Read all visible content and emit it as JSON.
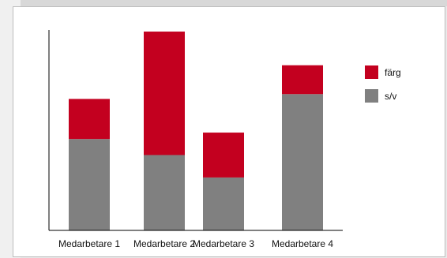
{
  "chart_data": {
    "type": "bar",
    "stacked": true,
    "categories": [
      "Medarbetare 1",
      "Medarbetare 2",
      "Medarbetare 3",
      "Medarbetare 4"
    ],
    "series": [
      {
        "name": "s/v",
        "color": "#808080",
        "values": [
          57,
          47,
          33,
          85
        ]
      },
      {
        "name": "färg",
        "color": "#c3001f",
        "values": [
          25,
          77,
          28,
          18
        ]
      }
    ],
    "ylim": [
      0,
      125
    ],
    "grid": false,
    "legend": "right",
    "title": "",
    "xlabel": "",
    "ylabel": ""
  }
}
